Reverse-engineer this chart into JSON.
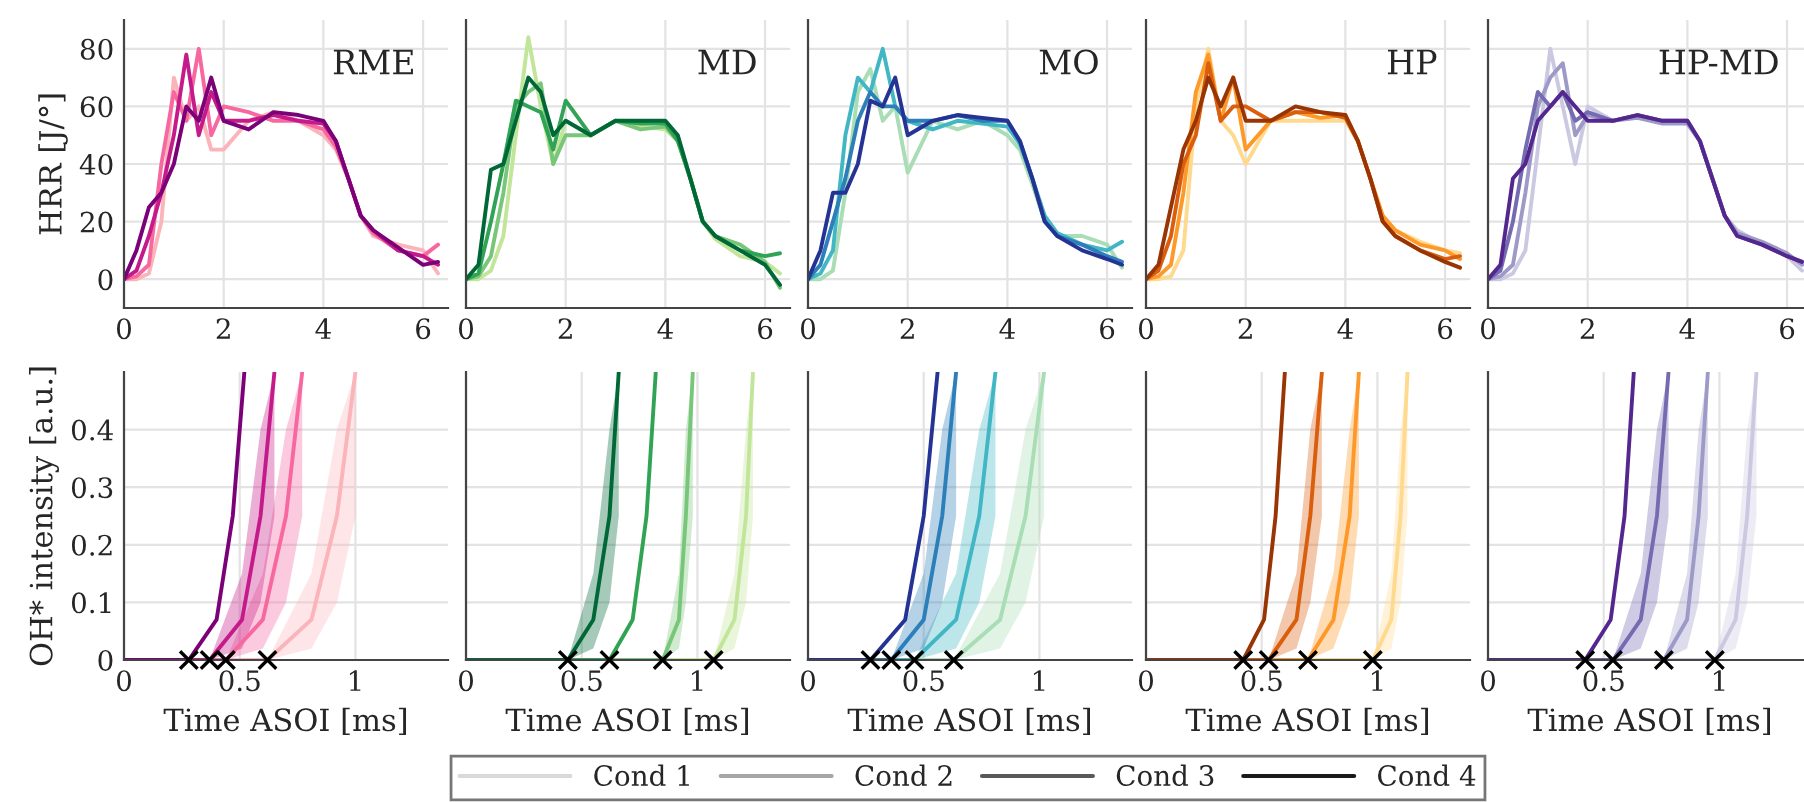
{
  "chart_data": [
    {
      "type": "line",
      "ylabel": "HRR [J/°]",
      "annotations": [
        "RME"
      ],
      "xlim": [
        0,
        6.5
      ],
      "ylim": [
        -10,
        90
      ],
      "xticks": [
        0,
        2,
        4,
        6
      ],
      "yticks": [
        0,
        20,
        40,
        60,
        80
      ],
      "grid": true,
      "line_style": "solid",
      "x": [
        0,
        0.25,
        0.5,
        0.75,
        1,
        1.25,
        1.5,
        1.75,
        2,
        2.5,
        3,
        3.5,
        4,
        4.25,
        4.5,
        4.75,
        5,
        5.5,
        6,
        6.3
      ],
      "series": [
        {
          "color": "#fbb4b9",
          "values": [
            0,
            0,
            2,
            20,
            70,
            55,
            60,
            45,
            45,
            55,
            58,
            55,
            50,
            45,
            35,
            22,
            15,
            12,
            10,
            2
          ]
        },
        {
          "color": "#f768a1",
          "values": [
            0,
            1,
            5,
            40,
            65,
            55,
            80,
            50,
            60,
            58,
            55,
            55,
            52,
            46,
            35,
            22,
            16,
            10,
            8,
            12
          ]
        },
        {
          "color": "#c51b8a",
          "values": [
            0,
            3,
            15,
            30,
            50,
            78,
            50,
            65,
            55,
            55,
            57,
            55,
            54,
            48,
            35,
            22,
            17,
            10,
            8,
            5
          ]
        },
        {
          "color": "#7a0177",
          "values": [
            0,
            10,
            25,
            30,
            40,
            60,
            55,
            70,
            55,
            52,
            58,
            57,
            55,
            48,
            35,
            22,
            17,
            11,
            5,
            6
          ]
        }
      ]
    },
    {
      "type": "line",
      "annotations": [
        "MD"
      ],
      "xlim": [
        0,
        6.5
      ],
      "ylim": [
        -10,
        90
      ],
      "xticks": [
        0,
        2,
        4,
        6
      ],
      "yticks": [
        0,
        20,
        40,
        60,
        80
      ],
      "tick_labels": "x",
      "grid": true,
      "line_style": "solid",
      "x": [
        0,
        0.25,
        0.5,
        0.75,
        1,
        1.25,
        1.5,
        1.75,
        2,
        2.5,
        3,
        3.5,
        4,
        4.25,
        4.5,
        4.75,
        5,
        5.5,
        6,
        6.3
      ],
      "series": [
        {
          "color": "#c2e699",
          "values": [
            0,
            0,
            3,
            15,
            50,
            84,
            60,
            40,
            55,
            50,
            55,
            53,
            52,
            48,
            35,
            20,
            14,
            8,
            6,
            2
          ]
        },
        {
          "color": "#78c679",
          "values": [
            0,
            1,
            8,
            30,
            60,
            65,
            68,
            40,
            50,
            50,
            55,
            52,
            53,
            48,
            35,
            20,
            15,
            12,
            6,
            -3
          ]
        },
        {
          "color": "#31a354",
          "values": [
            0,
            2,
            20,
            40,
            62,
            60,
            58,
            45,
            62,
            50,
            55,
            54,
            54,
            48,
            35,
            20,
            15,
            10,
            8,
            9
          ]
        },
        {
          "color": "#006837",
          "values": [
            0,
            5,
            38,
            40,
            55,
            70,
            65,
            50,
            55,
            50,
            55,
            55,
            55,
            50,
            35,
            20,
            15,
            10,
            5,
            -2
          ]
        }
      ]
    },
    {
      "type": "line",
      "annotations": [
        "MO"
      ],
      "xlim": [
        0,
        6.5
      ],
      "ylim": [
        -10,
        90
      ],
      "xticks": [
        0,
        2,
        4,
        6
      ],
      "yticks": [
        0,
        20,
        40,
        60,
        80
      ],
      "tick_labels": "x",
      "grid": true,
      "line_style": "solid",
      "x": [
        0,
        0.25,
        0.5,
        0.75,
        1,
        1.25,
        1.5,
        1.75,
        2,
        2.5,
        3,
        3.5,
        4,
        4.25,
        4.5,
        4.75,
        5,
        5.5,
        6,
        6.3
      ],
      "series": [
        {
          "color": "#a8ddb5",
          "values": [
            0,
            0,
            3,
            30,
            65,
            73,
            55,
            60,
            37,
            55,
            52,
            55,
            50,
            45,
            33,
            20,
            15,
            15,
            12,
            4
          ]
        },
        {
          "color": "#41b6c4",
          "values": [
            0,
            2,
            10,
            50,
            70,
            65,
            80,
            60,
            55,
            52,
            55,
            54,
            53,
            47,
            35,
            22,
            16,
            12,
            10,
            13
          ]
        },
        {
          "color": "#2c7fb8",
          "values": [
            0,
            5,
            20,
            35,
            55,
            65,
            60,
            60,
            55,
            55,
            57,
            55,
            55,
            48,
            35,
            20,
            15,
            12,
            8,
            6
          ]
        },
        {
          "color": "#253494",
          "values": [
            0,
            10,
            30,
            30,
            40,
            62,
            60,
            70,
            50,
            55,
            57,
            56,
            55,
            48,
            35,
            20,
            15,
            10,
            7,
            5
          ]
        }
      ]
    },
    {
      "type": "line",
      "annotations": [
        "HP"
      ],
      "xlim": [
        0,
        6.5
      ],
      "ylim": [
        -10,
        90
      ],
      "xticks": [
        0,
        2,
        4,
        6
      ],
      "yticks": [
        0,
        20,
        40,
        60,
        80
      ],
      "tick_labels": "x",
      "grid": true,
      "line_style": "solid",
      "x": [
        0,
        0.25,
        0.5,
        0.75,
        1,
        1.25,
        1.5,
        1.75,
        2,
        2.5,
        3,
        3.5,
        4,
        4.25,
        4.5,
        4.75,
        5,
        5.5,
        6,
        6.3
      ],
      "series": [
        {
          "color": "#fed98e",
          "values": [
            0,
            0,
            1,
            10,
            60,
            80,
            55,
            50,
            40,
            55,
            55,
            55,
            55,
            48,
            35,
            22,
            17,
            13,
            10,
            9
          ]
        },
        {
          "color": "#fe9929",
          "values": [
            0,
            1,
            5,
            30,
            65,
            78,
            55,
            70,
            45,
            55,
            58,
            56,
            57,
            48,
            35,
            22,
            17,
            12,
            10,
            7
          ]
        },
        {
          "color": "#d95f0e",
          "values": [
            0,
            3,
            15,
            40,
            50,
            75,
            55,
            60,
            60,
            55,
            58,
            58,
            56,
            48,
            35,
            20,
            15,
            10,
            7,
            8
          ]
        },
        {
          "color": "#993404",
          "values": [
            0,
            5,
            25,
            45,
            55,
            70,
            60,
            70,
            55,
            55,
            60,
            58,
            57,
            48,
            35,
            20,
            15,
            10,
            6,
            4
          ]
        }
      ]
    },
    {
      "type": "line",
      "annotations": [
        "HP-MD"
      ],
      "xlim": [
        0,
        6.5
      ],
      "ylim": [
        -10,
        90
      ],
      "xticks": [
        0,
        2,
        4,
        6
      ],
      "yticks": [
        0,
        20,
        40,
        60,
        80
      ],
      "tick_labels": "x",
      "grid": true,
      "line_style": "solid",
      "x": [
        0,
        0.25,
        0.5,
        0.75,
        1,
        1.25,
        1.5,
        1.75,
        2,
        2.5,
        3,
        3.5,
        4,
        4.25,
        4.5,
        4.75,
        5,
        5.5,
        6,
        6.3
      ],
      "series": [
        {
          "color": "#cbc9e2",
          "values": [
            0,
            0,
            2,
            10,
            45,
            80,
            60,
            40,
            60,
            55,
            57,
            55,
            54,
            48,
            35,
            22,
            17,
            12,
            8,
            3
          ]
        },
        {
          "color": "#9e9ac8",
          "values": [
            0,
            1,
            5,
            30,
            60,
            70,
            75,
            50,
            57,
            55,
            56,
            54,
            54,
            48,
            35,
            22,
            16,
            13,
            9,
            5
          ]
        },
        {
          "color": "#756bb1",
          "values": [
            0,
            3,
            20,
            45,
            65,
            60,
            65,
            55,
            58,
            55,
            57,
            55,
            55,
            48,
            35,
            22,
            15,
            12,
            8,
            6
          ]
        },
        {
          "color": "#54278f",
          "values": [
            0,
            5,
            35,
            40,
            55,
            60,
            65,
            60,
            55,
            55,
            57,
            55,
            55,
            48,
            35,
            22,
            15,
            12,
            8,
            6
          ]
        }
      ]
    },
    {
      "type": "line",
      "xlabel": "Time ASOI [ms]",
      "ylabel": "OH* intensity [a.u.]",
      "xlim": [
        0,
        1.4
      ],
      "ylim": [
        0,
        0.5
      ],
      "xticks": [
        0,
        0.5,
        1
      ],
      "yticks": [
        0,
        0.1,
        0.2,
        0.3,
        0.4
      ],
      "grid": true,
      "line_style": "solid",
      "series": [
        {
          "color": "#fbb4b9",
          "x": [
            0,
            0.62,
            0.81,
            0.92,
            1.0
          ],
          "values": [
            0,
            0,
            0.07,
            0.25,
            0.5
          ],
          "lower": [
            0,
            0,
            0.02,
            0.1,
            0.25
          ],
          "upper": [
            0,
            0,
            0.15,
            0.4,
            0.5
          ]
        },
        {
          "color": "#f768a1",
          "x": [
            0,
            0.44,
            0.6,
            0.7,
            0.77
          ],
          "values": [
            0,
            0,
            0.07,
            0.25,
            0.5
          ],
          "lower": [
            0,
            0,
            0.02,
            0.1,
            0.25
          ],
          "upper": [
            0,
            0,
            0.15,
            0.4,
            0.5
          ]
        },
        {
          "color": "#c51b8a",
          "x": [
            0,
            0.37,
            0.51,
            0.59,
            0.65
          ],
          "values": [
            0,
            0,
            0.07,
            0.25,
            0.5
          ],
          "lower": [
            0,
            0,
            0.02,
            0.1,
            0.25
          ],
          "upper": [
            0,
            0,
            0.15,
            0.4,
            0.5
          ]
        },
        {
          "color": "#7a0177",
          "x": [
            0,
            0.28,
            0.4,
            0.47,
            0.52
          ],
          "values": [
            0,
            0,
            0.07,
            0.25,
            0.5
          ]
        },
        {
          "type": "scatter",
          "marker": "cross",
          "color": "#000000",
          "x": [
            0.28,
            0.37,
            0.44,
            0.62
          ],
          "values": [
            0,
            0,
            0,
            0
          ]
        }
      ]
    },
    {
      "type": "line",
      "xlabel": "Time ASOI [ms]",
      "xlim": [
        0,
        1.4
      ],
      "ylim": [
        0,
        0.5
      ],
      "xticks": [
        0,
        0.5,
        1
      ],
      "yticks": [
        0,
        0.1,
        0.2,
        0.3,
        0.4
      ],
      "tick_labels": "x",
      "grid": true,
      "line_style": "solid",
      "series": [
        {
          "color": "#c2e699",
          "x": [
            0,
            1.07,
            1.16,
            1.21,
            1.24
          ],
          "values": [
            0,
            0,
            0.07,
            0.25,
            0.5
          ],
          "lower": [
            0,
            0,
            0.02,
            0.1,
            0.25
          ],
          "upper": [
            0,
            0,
            0.15,
            0.4,
            0.5
          ]
        },
        {
          "color": "#78c679",
          "x": [
            0,
            0.85,
            0.92,
            0.95,
            0.98
          ],
          "values": [
            0,
            0,
            0.07,
            0.25,
            0.5
          ],
          "lower": [
            0,
            0,
            0.02,
            0.1,
            0.25
          ],
          "upper": [
            0,
            0,
            0.15,
            0.4,
            0.5
          ]
        },
        {
          "color": "#31a354",
          "x": [
            0,
            0.62,
            0.72,
            0.78,
            0.82
          ],
          "values": [
            0,
            0,
            0.07,
            0.25,
            0.5
          ]
        },
        {
          "color": "#006837",
          "x": [
            0,
            0.44,
            0.55,
            0.62,
            0.66
          ],
          "values": [
            0,
            0,
            0.07,
            0.25,
            0.5
          ],
          "lower": [
            0,
            0,
            0.02,
            0.1,
            0.25
          ],
          "upper": [
            0,
            0,
            0.15,
            0.4,
            0.5
          ]
        },
        {
          "type": "scatter",
          "marker": "cross",
          "color": "#000000",
          "x": [
            0.44,
            0.62,
            0.85,
            1.07
          ],
          "values": [
            0,
            0,
            0,
            0
          ]
        }
      ]
    },
    {
      "type": "line",
      "xlabel": "Time ASOI [ms]",
      "xlim": [
        0,
        1.4
      ],
      "ylim": [
        0,
        0.5
      ],
      "xticks": [
        0,
        0.5,
        1
      ],
      "yticks": [
        0,
        0.1,
        0.2,
        0.3,
        0.4
      ],
      "tick_labels": "x",
      "grid": true,
      "line_style": "solid",
      "series": [
        {
          "color": "#a8ddb5",
          "x": [
            0,
            0.63,
            0.83,
            0.94,
            1.02
          ],
          "values": [
            0,
            0,
            0.07,
            0.25,
            0.5
          ],
          "lower": [
            0,
            0,
            0.02,
            0.1,
            0.25
          ],
          "upper": [
            0,
            0,
            0.15,
            0.4,
            0.5
          ]
        },
        {
          "color": "#41b6c4",
          "x": [
            0,
            0.46,
            0.64,
            0.74,
            0.81
          ],
          "values": [
            0,
            0,
            0.07,
            0.25,
            0.5
          ],
          "lower": [
            0,
            0,
            0.02,
            0.1,
            0.25
          ],
          "upper": [
            0,
            0,
            0.15,
            0.4,
            0.5
          ]
        },
        {
          "color": "#2c7fb8",
          "x": [
            0,
            0.36,
            0.5,
            0.58,
            0.64
          ],
          "values": [
            0,
            0,
            0.07,
            0.25,
            0.5
          ],
          "lower": [
            0,
            0,
            0.02,
            0.1,
            0.25
          ],
          "upper": [
            0,
            0,
            0.15,
            0.4,
            0.5
          ]
        },
        {
          "color": "#253494",
          "x": [
            0,
            0.27,
            0.42,
            0.5,
            0.56
          ],
          "values": [
            0,
            0,
            0.07,
            0.25,
            0.5
          ]
        },
        {
          "type": "scatter",
          "marker": "cross",
          "color": "#000000",
          "x": [
            0.27,
            0.36,
            0.46,
            0.63
          ],
          "values": [
            0,
            0,
            0,
            0
          ]
        }
      ]
    },
    {
      "type": "line",
      "xlabel": "Time ASOI [ms]",
      "xlim": [
        0,
        1.4
      ],
      "ylim": [
        0,
        0.5
      ],
      "xticks": [
        0,
        0.5,
        1
      ],
      "yticks": [
        0,
        0.1,
        0.2,
        0.3,
        0.4
      ],
      "tick_labels": "x",
      "grid": true,
      "line_style": "solid",
      "series": [
        {
          "color": "#fed98e",
          "x": [
            0,
            0.98,
            1.06,
            1.1,
            1.13
          ],
          "values": [
            0,
            0,
            0.07,
            0.25,
            0.5
          ],
          "lower": [
            0,
            0,
            0.02,
            0.1,
            0.25
          ],
          "upper": [
            0,
            0,
            0.15,
            0.4,
            0.5
          ]
        },
        {
          "color": "#fe9929",
          "x": [
            0,
            0.7,
            0.81,
            0.88,
            0.92
          ],
          "values": [
            0,
            0,
            0.07,
            0.25,
            0.5
          ],
          "lower": [
            0,
            0,
            0.02,
            0.1,
            0.25
          ],
          "upper": [
            0,
            0,
            0.15,
            0.4,
            0.5
          ]
        },
        {
          "color": "#d95f0e",
          "x": [
            0,
            0.53,
            0.65,
            0.71,
            0.76
          ],
          "values": [
            0,
            0,
            0.07,
            0.25,
            0.5
          ],
          "lower": [
            0,
            0,
            0.02,
            0.1,
            0.25
          ],
          "upper": [
            0,
            0,
            0.15,
            0.4,
            0.5
          ]
        },
        {
          "color": "#993404",
          "x": [
            0,
            0.42,
            0.51,
            0.56,
            0.6
          ],
          "values": [
            0,
            0,
            0.07,
            0.25,
            0.5
          ]
        },
        {
          "type": "scatter",
          "marker": "cross",
          "color": "#000000",
          "x": [
            0.42,
            0.53,
            0.7,
            0.98
          ],
          "values": [
            0,
            0,
            0,
            0
          ]
        }
      ]
    },
    {
      "type": "line",
      "xlabel": "Time ASOI [ms]",
      "xlim": [
        0,
        1.4
      ],
      "ylim": [
        0,
        0.5
      ],
      "xticks": [
        0,
        0.5,
        1
      ],
      "yticks": [
        0,
        0.1,
        0.2,
        0.3,
        0.4
      ],
      "tick_labels": "x",
      "grid": true,
      "line_style": "solid",
      "series": [
        {
          "color": "#cbc9e2",
          "x": [
            0,
            0.98,
            1.07,
            1.12,
            1.16
          ],
          "values": [
            0,
            0,
            0.07,
            0.25,
            0.5
          ],
          "lower": [
            0,
            0,
            0.02,
            0.1,
            0.25
          ],
          "upper": [
            0,
            0,
            0.15,
            0.4,
            0.5
          ]
        },
        {
          "color": "#9e9ac8",
          "x": [
            0,
            0.76,
            0.86,
            0.91,
            0.95
          ],
          "values": [
            0,
            0,
            0.07,
            0.25,
            0.5
          ],
          "lower": [
            0,
            0,
            0.02,
            0.1,
            0.25
          ],
          "upper": [
            0,
            0,
            0.15,
            0.4,
            0.5
          ]
        },
        {
          "color": "#756bb1",
          "x": [
            0,
            0.54,
            0.66,
            0.73,
            0.78
          ],
          "values": [
            0,
            0,
            0.07,
            0.25,
            0.5
          ],
          "lower": [
            0,
            0,
            0.02,
            0.1,
            0.25
          ],
          "upper": [
            0,
            0,
            0.15,
            0.4,
            0.5
          ]
        },
        {
          "color": "#54278f",
          "x": [
            0,
            0.42,
            0.53,
            0.59,
            0.63
          ],
          "values": [
            0,
            0,
            0.07,
            0.25,
            0.5
          ]
        },
        {
          "type": "scatter",
          "marker": "cross",
          "color": "#000000",
          "x": [
            0.42,
            0.54,
            0.76,
            0.98
          ],
          "values": [
            0,
            0,
            0,
            0
          ]
        }
      ]
    },
    {
      "type": "other",
      "legend": "bottom",
      "series": [
        {
          "name": "Cond 1",
          "color": "#d9d9d9"
        },
        {
          "name": "Cond 2",
          "color": "#a6a6a6"
        },
        {
          "name": "Cond 3",
          "color": "#595959"
        },
        {
          "name": "Cond 4",
          "color": "#1a1a1a"
        }
      ]
    }
  ]
}
